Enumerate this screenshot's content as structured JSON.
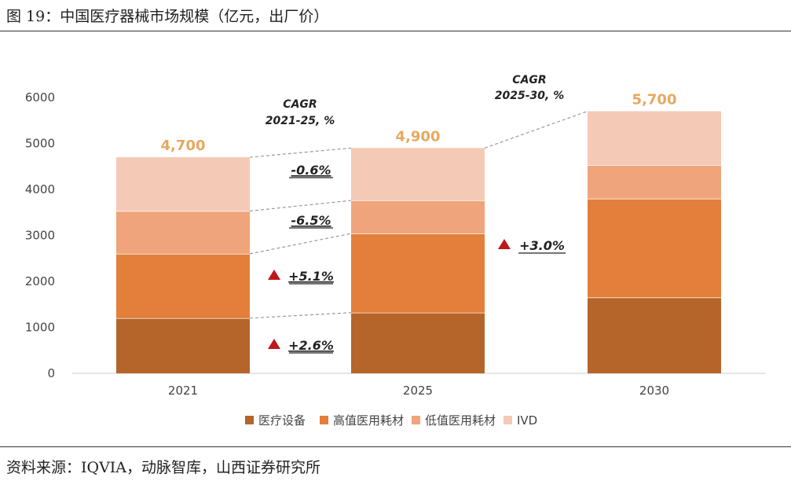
{
  "figure_title": "图 19：中国医疗器械市场规模（亿元，出厂价）",
  "source_note": "资料来源：IQVIA，动脉智库，山西证券研究所",
  "chart_data": {
    "type": "bar",
    "stacked": true,
    "categories": [
      "2021",
      "2025",
      "2030"
    ],
    "series": [
      {
        "name": "医疗设备",
        "color": "#B5652A",
        "values": [
          1200,
          1320,
          1650
        ]
      },
      {
        "name": "高值医用耗材",
        "color": "#E37F3A",
        "values": [
          1400,
          1720,
          2150
        ]
      },
      {
        "name": "低值医用耗材",
        "color": "#EFA47C",
        "values": [
          930,
          720,
          730
        ]
      },
      {
        "name": "IVD",
        "color": "#F4C9B5",
        "values": [
          1170,
          1140,
          1170
        ]
      }
    ],
    "totals": [
      "4,700",
      "4,900",
      "5,700"
    ],
    "ylim": [
      0,
      6000
    ],
    "yticks": [
      0,
      1000,
      2000,
      3000,
      4000,
      5000,
      6000
    ],
    "legend_position": "bottom",
    "cagr_2021_25": {
      "heading_line1": "CAGR",
      "heading_line2": "2021-25, %",
      "values": [
        "-0.6%",
        "-6.5%",
        "+5.1%",
        "+2.6%"
      ]
    },
    "cagr_2025_30": {
      "heading_line1": "CAGR",
      "heading_line2": "2025-30, %",
      "value": "+3.0%"
    }
  }
}
